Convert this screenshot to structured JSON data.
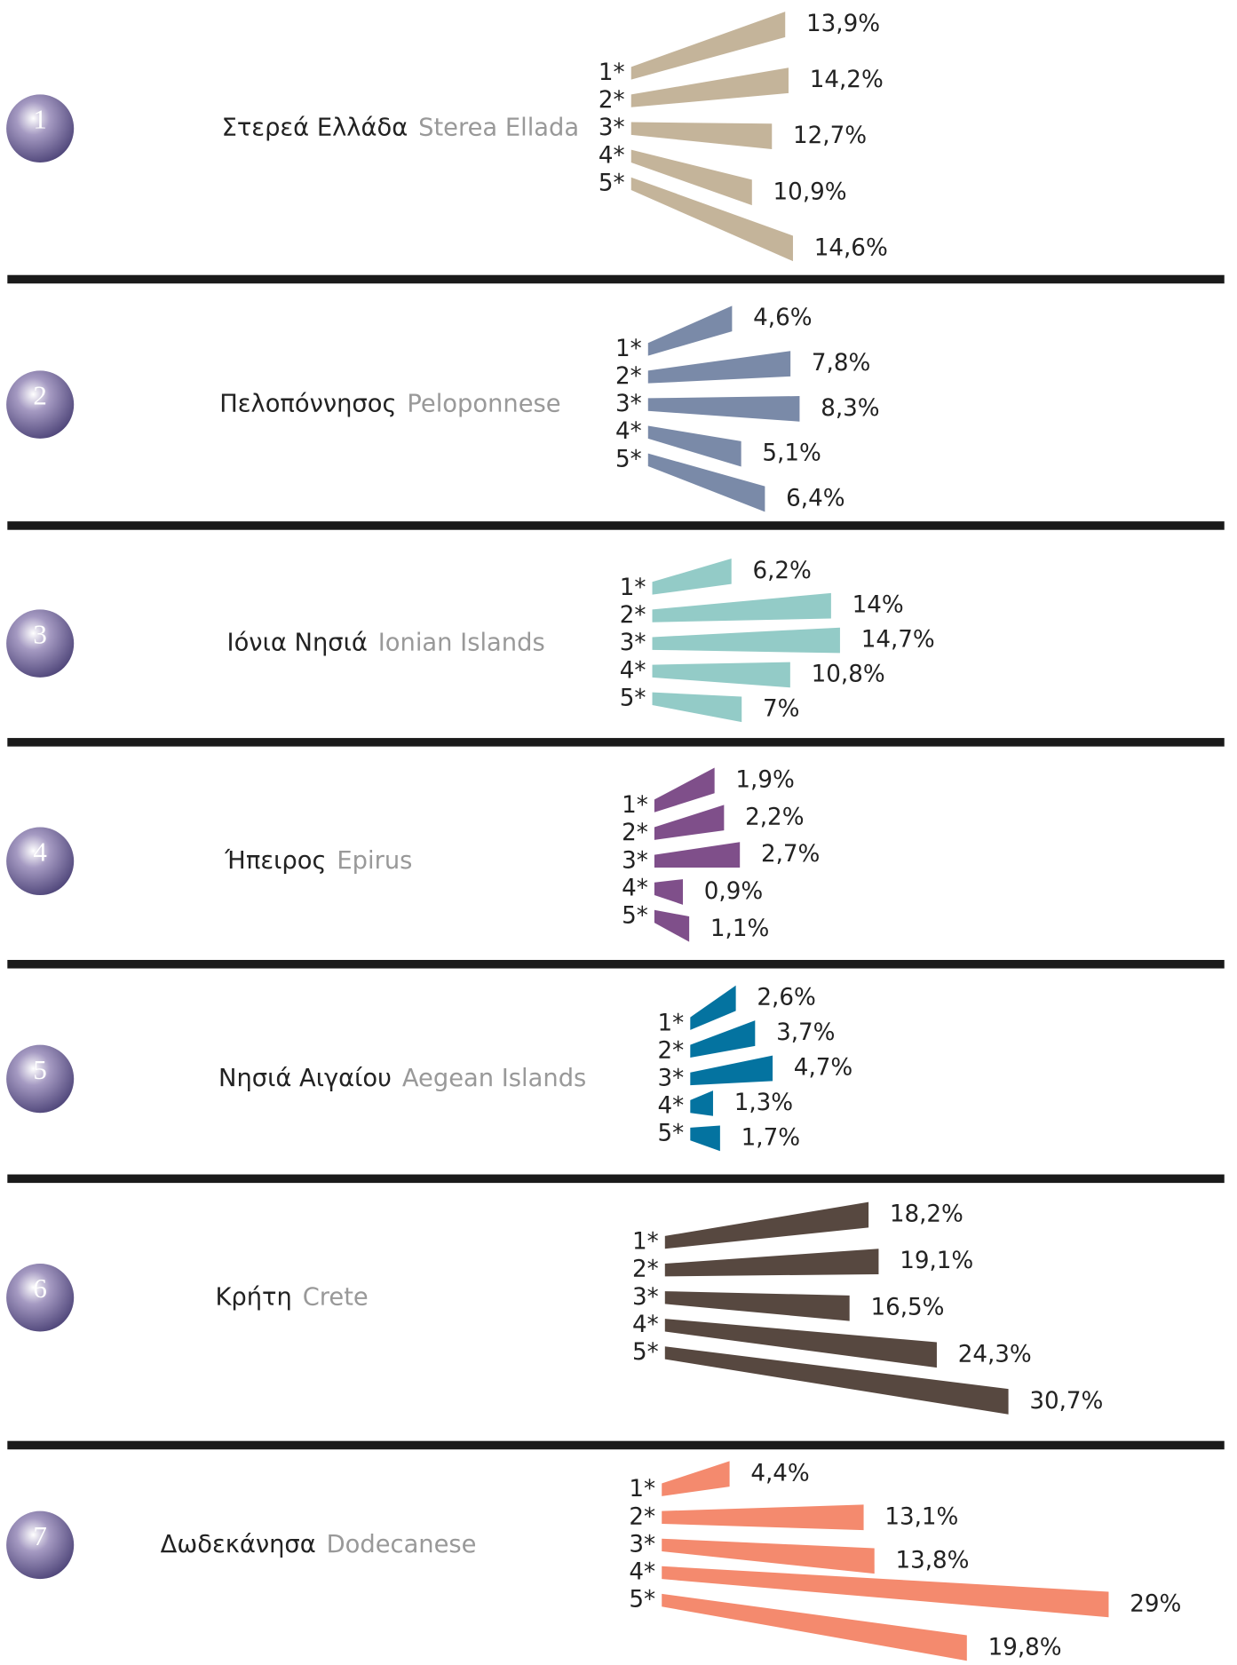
{
  "chart_data": [
    {
      "type": "fan-bar",
      "number": "1",
      "title": "Στερεά Ελλάδα",
      "subtitle": "Sterea Ellada",
      "categories": [
        "1*",
        "2*",
        "3*",
        "4*",
        "5*"
      ],
      "values": [
        13.9,
        14.2,
        12.7,
        10.9,
        14.6
      ],
      "value_labels": [
        "13,9%",
        "14,2%",
        "12,7%",
        "10,9%",
        "14,6%"
      ],
      "color": "#c4b49a"
    },
    {
      "type": "fan-bar",
      "number": "2",
      "title": "Πελοπόννησος",
      "subtitle": "Peloponnese",
      "categories": [
        "1*",
        "2*",
        "3*",
        "4*",
        "5*"
      ],
      "values": [
        4.6,
        7.8,
        8.3,
        5.1,
        6.4
      ],
      "value_labels": [
        "4,6%",
        "7,8%",
        "8,3%",
        "5,1%",
        "6,4%"
      ],
      "color": "#7a8aa8"
    },
    {
      "type": "fan-bar",
      "number": "3",
      "title": "Ιόνια Νησιά",
      "subtitle": "Ionian Islands",
      "categories": [
        "1*",
        "2*",
        "3*",
        "4*",
        "5*"
      ],
      "values": [
        6.2,
        14,
        14.7,
        10.8,
        7
      ],
      "value_labels": [
        "6,2%",
        "14%",
        "14,7%",
        "10,8%",
        "7%"
      ],
      "color": "#93cbc7"
    },
    {
      "type": "fan-bar",
      "number": "4",
      "title": "Ήπειρος",
      "subtitle": "Epirus",
      "categories": [
        "1*",
        "2*",
        "3*",
        "4*",
        "5*"
      ],
      "values": [
        1.9,
        2.2,
        2.7,
        0.9,
        1.1
      ],
      "value_labels": [
        "1,9%",
        "2,2%",
        "2,7%",
        "0,9%",
        "1,1%"
      ],
      "color": "#7f4f8a"
    },
    {
      "type": "fan-bar",
      "number": "5",
      "title": "Νησιά Αιγαίου",
      "subtitle": "Aegean Islands",
      "categories": [
        "1*",
        "2*",
        "3*",
        "4*",
        "5*"
      ],
      "values": [
        2.6,
        3.7,
        4.7,
        1.3,
        1.7
      ],
      "value_labels": [
        "2,6%",
        "3,7%",
        "4,7%",
        "1,3%",
        "1,7%"
      ],
      "color": "#0473a0"
    },
    {
      "type": "fan-bar",
      "number": "6",
      "title": "Κρήτη",
      "subtitle": "Crete",
      "categories": [
        "1*",
        "2*",
        "3*",
        "4*",
        "5*"
      ],
      "values": [
        18.2,
        19.1,
        16.5,
        24.3,
        30.7
      ],
      "value_labels": [
        "18,2%",
        "19,1%",
        "16,5%",
        "24,3%",
        "30,7%"
      ],
      "color": "#574840"
    },
    {
      "type": "fan-bar",
      "number": "7",
      "title": "Δωδεκάνησα",
      "subtitle": "Dodecanese",
      "categories": [
        "1*",
        "2*",
        "3*",
        "4*",
        "5*"
      ],
      "values": [
        4.4,
        13.1,
        13.8,
        29,
        19.8
      ],
      "value_labels": [
        "4,4%",
        "13,1%",
        "13,8%",
        "29%",
        "19,8%"
      ],
      "color": "#f48a6e"
    }
  ]
}
